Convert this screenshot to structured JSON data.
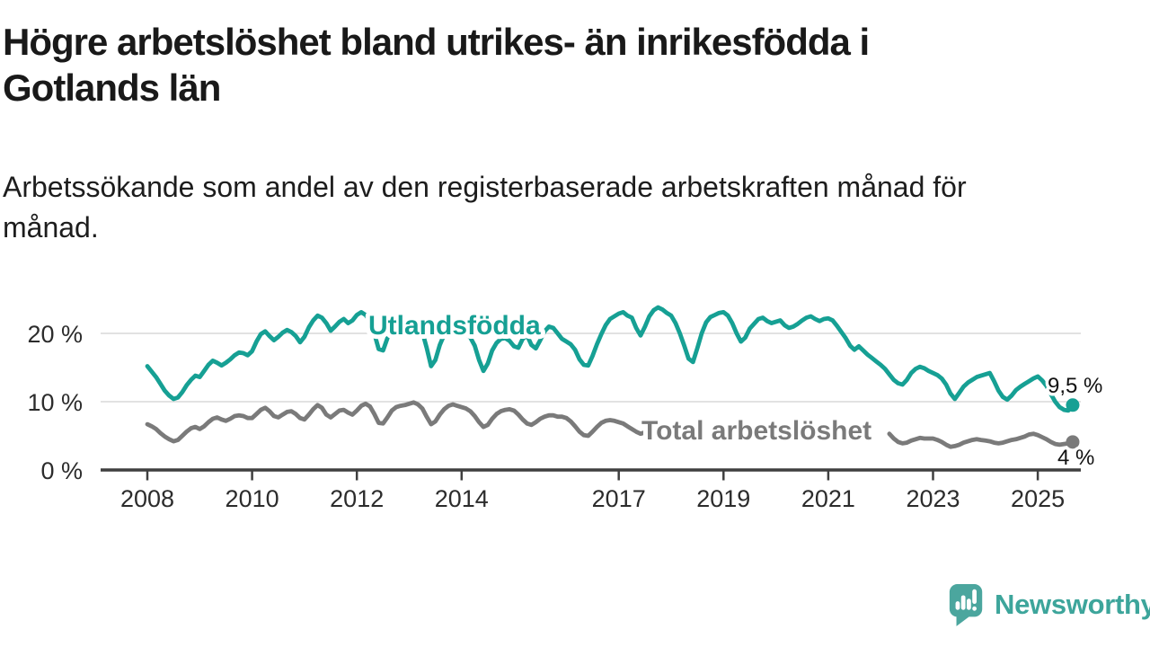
{
  "header": {
    "title_lines": [
      "Högre arbetslöshet bland utrikes- än inrikesfödda i",
      "Gotlands län"
    ],
    "subtitle_lines": [
      "Arbetssökande som andel av den registerbaserade arbetskraften månad för",
      "månad."
    ]
  },
  "chart_data": {
    "type": "line",
    "title": "Högre arbetslöshet bland utrikes- än inrikesfödda i Gotlands län",
    "subtitle": "Arbetssökande som andel av den registerbaserade arbetskraften månad för månad.",
    "unit": "%",
    "frequency": "monthly",
    "x_start": {
      "year": 2008,
      "month": 1
    },
    "x_end": {
      "year": 2025,
      "month": 9
    },
    "grid": "horizontal",
    "legend_position": "inline-labels",
    "x_axis": {
      "tick_labels": [
        "2008",
        "2010",
        "2012",
        "2014",
        "2017",
        "2019",
        "2021",
        "2023",
        "2025"
      ]
    },
    "y_axis": {
      "ticks": [
        {
          "label": "0 %",
          "value": 0
        },
        {
          "label": "10 %",
          "value": 10
        },
        {
          "label": "20 %",
          "value": 20
        }
      ],
      "range": [
        0,
        25
      ]
    },
    "series": [
      {
        "name": "Utlandsfödda",
        "color": "#16a094",
        "end_label": "9,5 %",
        "end_value": 9.5,
        "values": [
          15.2,
          14.4,
          13.6,
          12.6,
          11.6,
          10.9,
          10.4,
          10.6,
          11.4,
          12.4,
          13.2,
          13.8,
          13.6,
          14.5,
          15.4,
          16.0,
          15.7,
          15.3,
          15.7,
          16.2,
          16.8,
          17.2,
          17.1,
          16.8,
          17.4,
          18.8,
          19.9,
          20.3,
          19.6,
          19.0,
          19.5,
          20.1,
          20.5,
          20.2,
          19.6,
          18.7,
          19.5,
          20.9,
          21.9,
          22.6,
          22.3,
          21.5,
          20.4,
          21.0,
          21.7,
          22.1,
          21.5,
          21.9,
          22.7,
          23.1,
          22.7,
          21.8,
          20.0,
          17.7,
          17.5,
          19.3,
          20.6,
          21.2,
          21.4,
          21.7,
          21.9,
          21.6,
          21.1,
          20.2,
          17.9,
          15.2,
          16.1,
          18.3,
          19.8,
          20.5,
          20.8,
          20.6,
          20.4,
          19.9,
          19.4,
          18.2,
          16.1,
          14.5,
          15.6,
          17.5,
          18.6,
          19.2,
          19.3,
          18.9,
          18.1,
          17.9,
          19.2,
          19.7,
          18.3,
          17.8,
          19.0,
          20.3,
          21.0,
          20.8,
          20.0,
          19.2,
          18.8,
          18.4,
          17.6,
          16.2,
          15.4,
          15.3,
          16.7,
          18.4,
          19.9,
          21.2,
          22.1,
          22.5,
          22.9,
          23.1,
          22.6,
          22.3,
          20.8,
          19.7,
          21.0,
          22.5,
          23.4,
          23.8,
          23.5,
          23.0,
          22.6,
          21.5,
          20.0,
          18.2,
          16.3,
          15.8,
          17.8,
          20.0,
          21.6,
          22.4,
          22.7,
          23.0,
          23.1,
          22.6,
          21.5,
          20.0,
          18.8,
          19.4,
          20.7,
          21.4,
          22.1,
          22.3,
          21.8,
          21.5,
          21.7,
          21.9,
          21.2,
          20.8,
          21.0,
          21.4,
          21.9,
          22.3,
          22.5,
          22.1,
          21.8,
          22.1,
          22.2,
          21.9,
          21.1,
          20.2,
          19.3,
          18.2,
          17.6,
          18.1,
          17.5,
          16.9,
          16.4,
          15.9,
          15.4,
          14.8,
          14.0,
          13.2,
          12.7,
          12.5,
          13.2,
          14.2,
          14.8,
          15.1,
          14.9,
          14.5,
          14.2,
          13.9,
          13.4,
          12.5,
          11.2,
          10.4,
          11.3,
          12.2,
          12.8,
          13.2,
          13.6,
          13.8,
          14.0,
          14.2,
          13.0,
          11.6,
          10.7,
          10.3,
          10.9,
          11.7,
          12.2,
          12.6,
          13.0,
          13.4,
          13.7,
          13.1,
          12.3,
          11.1,
          10.0,
          9.2,
          8.8,
          8.7,
          9.5
        ]
      },
      {
        "name": "Total arbetslöshet",
        "color": "#7a7a7a",
        "end_label": "4 %",
        "end_value": 4.1,
        "values": [
          6.7,
          6.4,
          6.0,
          5.4,
          4.9,
          4.5,
          4.2,
          4.4,
          5.0,
          5.6,
          6.1,
          6.3,
          6.0,
          6.4,
          7.0,
          7.5,
          7.7,
          7.4,
          7.2,
          7.5,
          7.9,
          8.0,
          7.9,
          7.6,
          7.6,
          8.2,
          8.8,
          9.1,
          8.6,
          7.9,
          7.7,
          8.1,
          8.5,
          8.6,
          8.2,
          7.6,
          7.4,
          8.1,
          8.9,
          9.5,
          9.1,
          8.1,
          7.7,
          8.2,
          8.7,
          8.8,
          8.4,
          8.1,
          8.7,
          9.4,
          9.7,
          9.3,
          8.2,
          6.9,
          6.8,
          7.7,
          8.7,
          9.2,
          9.4,
          9.5,
          9.7,
          9.9,
          9.6,
          9.0,
          7.8,
          6.7,
          7.1,
          8.1,
          8.9,
          9.4,
          9.6,
          9.4,
          9.2,
          9.0,
          8.6,
          7.9,
          7.0,
          6.3,
          6.6,
          7.5,
          8.2,
          8.6,
          8.8,
          8.9,
          8.7,
          8.1,
          7.4,
          6.8,
          6.6,
          7.0,
          7.5,
          7.8,
          8.0,
          8.0,
          7.8,
          7.8,
          7.6,
          7.1,
          6.4,
          5.6,
          5.1,
          5.0,
          5.6,
          6.3,
          6.9,
          7.2,
          7.3,
          7.2,
          7.0,
          6.8,
          6.4,
          6.0,
          5.6,
          5.3,
          5.5,
          null,
          null,
          null,
          null,
          null,
          null,
          null,
          null,
          null,
          null,
          null,
          null,
          null,
          null,
          null,
          null,
          null,
          null,
          null,
          null,
          null,
          null,
          null,
          null,
          null,
          null,
          null,
          null,
          null,
          null,
          null,
          null,
          null,
          null,
          null,
          null,
          null,
          null,
          null,
          null,
          null,
          null,
          null,
          null,
          null,
          null,
          null,
          null,
          null,
          null,
          null,
          null,
          null,
          null,
          null,
          5.3,
          4.6,
          4.1,
          3.9,
          4.0,
          4.3,
          4.5,
          4.7,
          4.6,
          4.6,
          4.6,
          4.4,
          4.1,
          3.7,
          3.4,
          3.5,
          3.7,
          4.0,
          4.2,
          4.4,
          4.5,
          4.4,
          4.3,
          4.2,
          4.0,
          3.9,
          4.0,
          4.2,
          4.4,
          4.5,
          4.7,
          4.9,
          5.2,
          5.3,
          5.1,
          4.8,
          4.5,
          4.1,
          3.8,
          3.7,
          3.8,
          3.9,
          4.1
        ]
      }
    ],
    "colors": {
      "axis": "#3f3f3f",
      "gridline": "#d8d8d8",
      "tick_text": "#2c2c2c",
      "value_label_text": "#111111"
    }
  },
  "footer": {
    "brand": "Newsworthy",
    "logo_icon": "speech-bubble-bar-chart-icon",
    "brand_color": "#3da59b",
    "icon_color": "#4ba69e"
  }
}
